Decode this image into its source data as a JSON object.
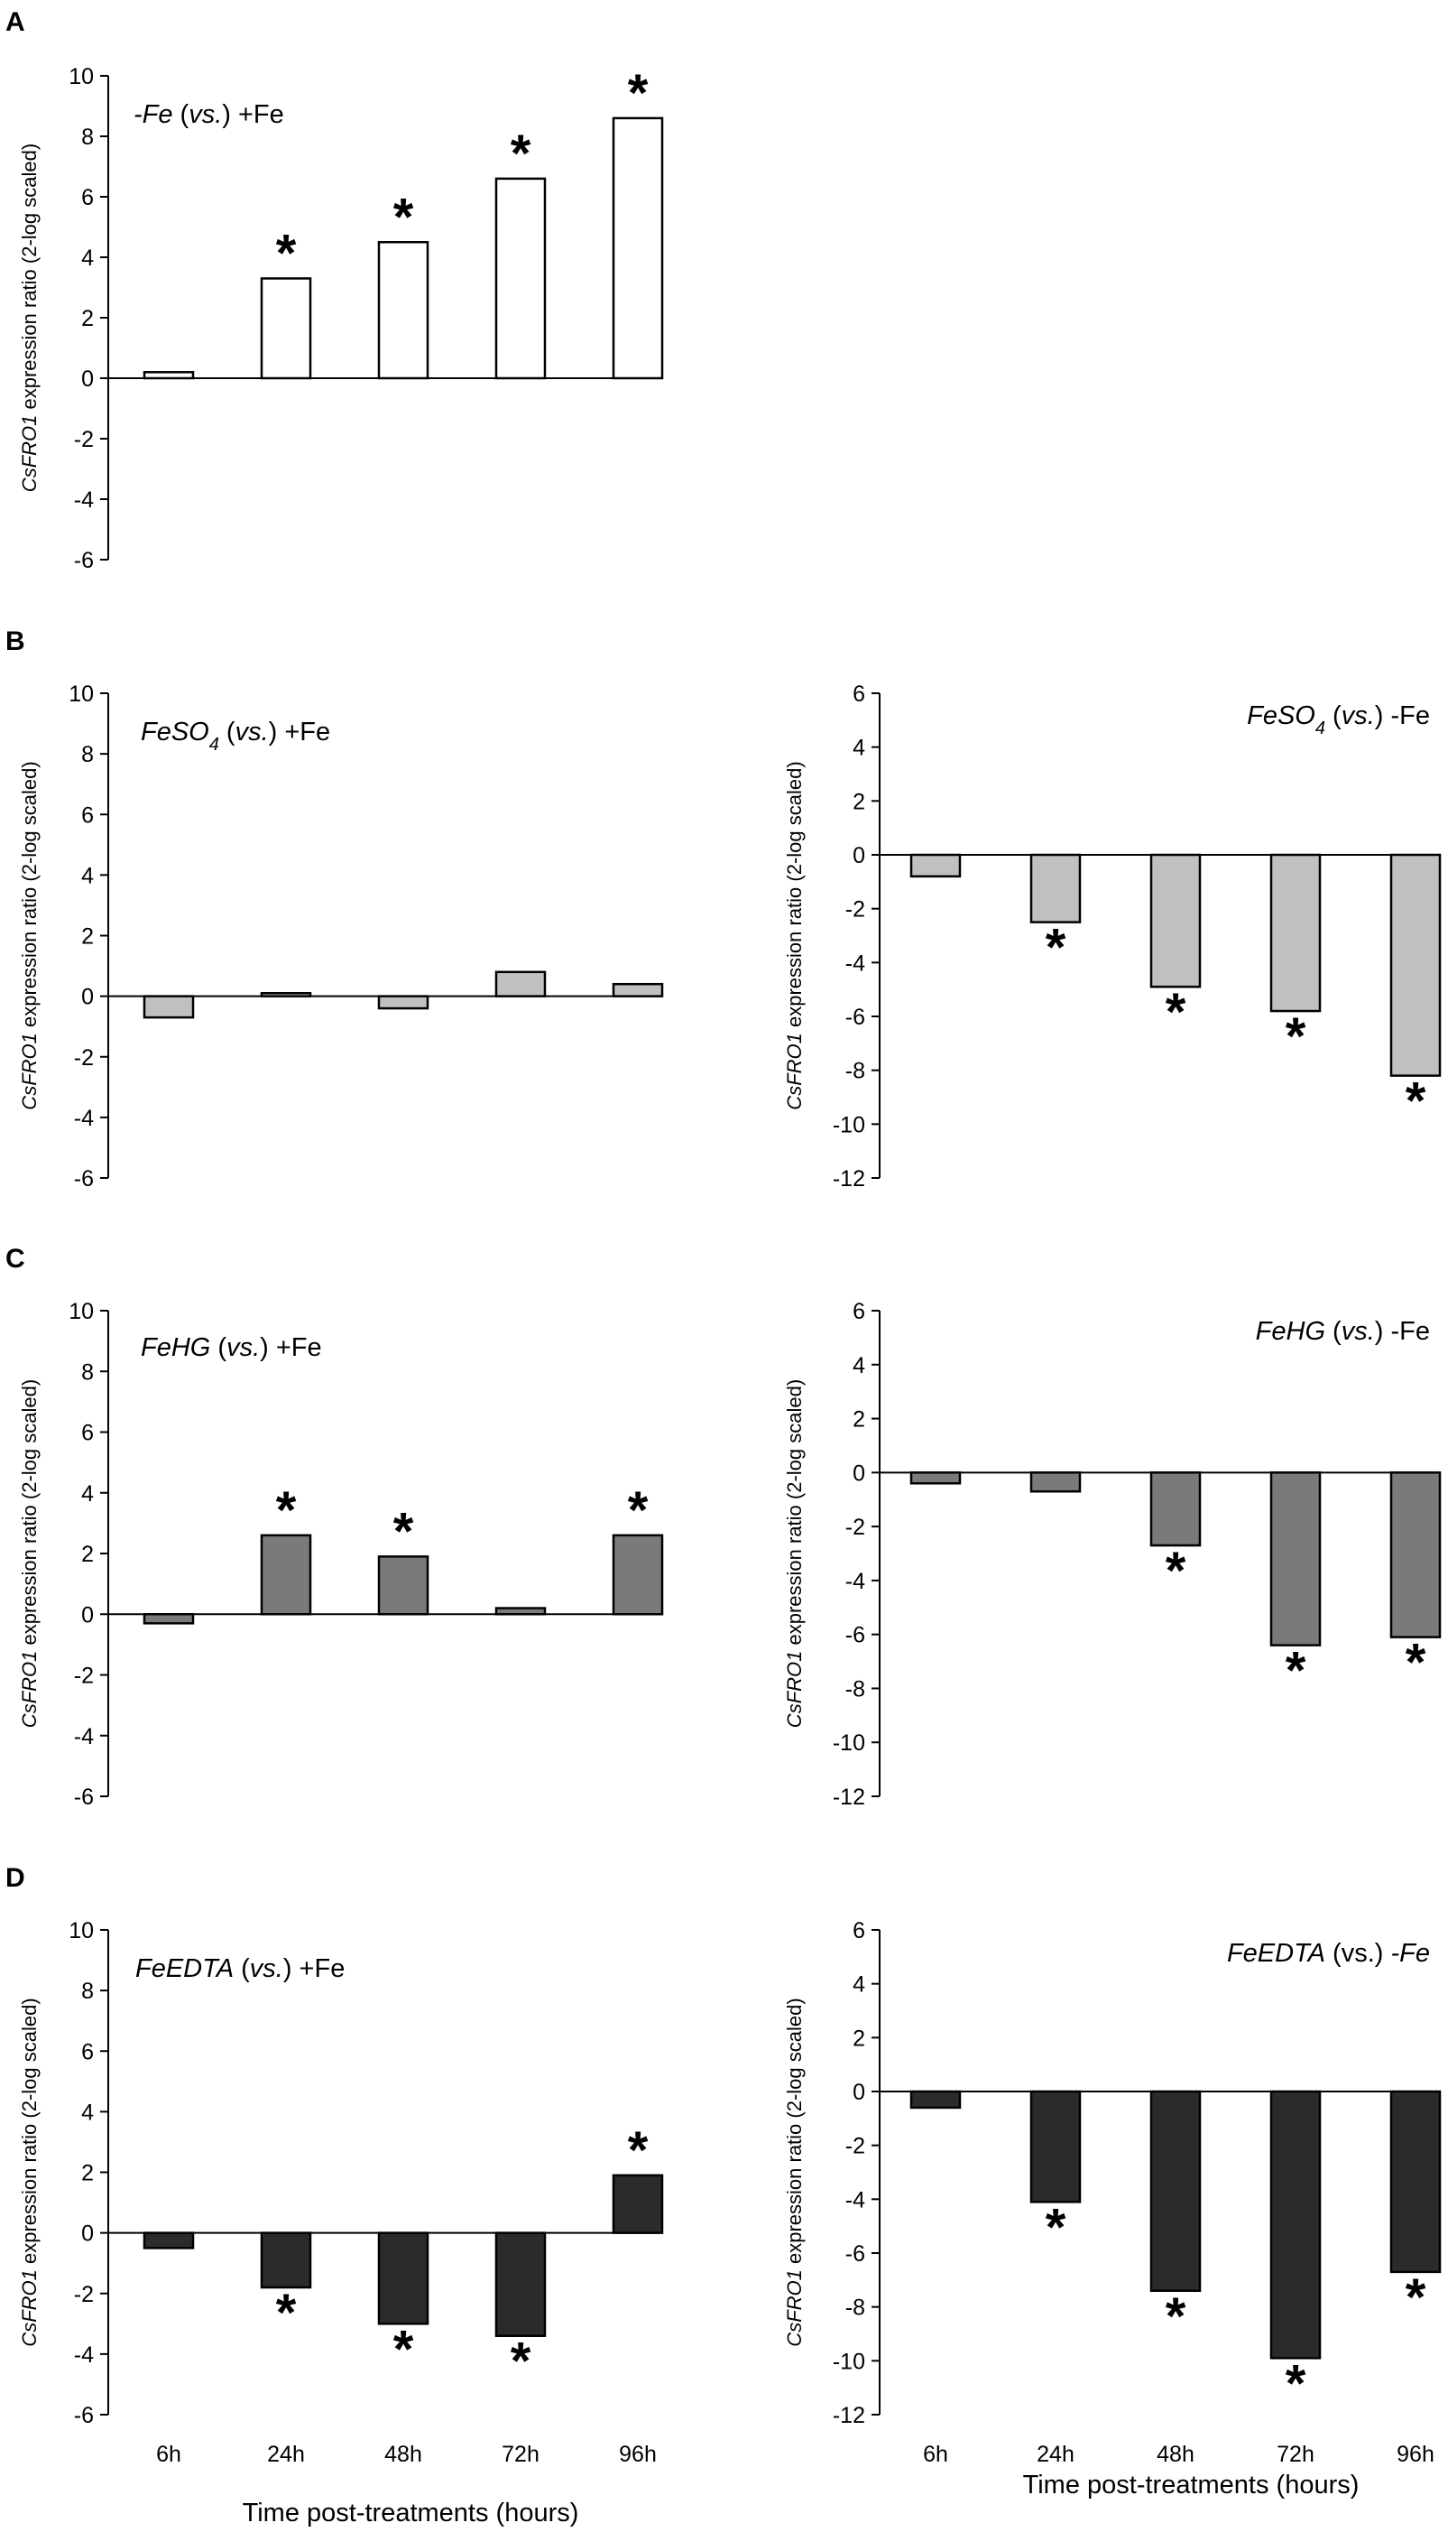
{
  "panel_letters": [
    "A",
    "B",
    "C",
    "D"
  ],
  "x_axis_label": "Time post-treatments (hours)",
  "colors": {
    "white_bar": "#ffffff",
    "light_gray_bar": "#c0c0c0",
    "mid_gray_bar": "#7a7a7a",
    "dark_bar": "#2b2b2b",
    "axis": "#000000"
  },
  "chart_data": [
    {
      "id": "A",
      "type": "bar",
      "title": "-Fe (vs.) +Fe",
      "title_parts": [
        {
          "text": "-Fe",
          "italic": true
        },
        {
          "text": " (",
          "italic": false
        },
        {
          "text": "vs.",
          "italic": true
        },
        {
          "text": ") +Fe",
          "italic": false
        }
      ],
      "ylabel": "CsFRO1 expression ratio (2-log scaled)",
      "ylabel_parts": [
        {
          "text": "CsFRO1",
          "italic": true
        },
        {
          "text": " expression ratio (2-log scaled)",
          "italic": false
        }
      ],
      "xlabel": "",
      "categories": [
        "6h",
        "24h",
        "48h",
        "72h",
        "96h"
      ],
      "values": [
        0.2,
        3.3,
        4.5,
        6.6,
        8.6
      ],
      "significant": [
        false,
        true,
        true,
        true,
        true
      ],
      "ylim": [
        -6,
        10
      ],
      "yticks": [
        -6,
        -4,
        -2,
        0,
        2,
        4,
        6,
        8,
        10
      ],
      "bar_color": "white_bar"
    },
    {
      "id": "B-left",
      "type": "bar",
      "title": "FeSO4 (vs.) +Fe",
      "title_parts": [
        {
          "text": "FeSO",
          "italic": true
        },
        {
          "text": "4",
          "italic": true,
          "sub": true
        },
        {
          "text": " (",
          "italic": false
        },
        {
          "text": "vs.",
          "italic": true
        },
        {
          "text": ") +Fe",
          "italic": false
        }
      ],
      "ylabel": "CsFRO1 expression ratio (2-log scaled)",
      "ylabel_parts": [
        {
          "text": "CsFRO1",
          "italic": true
        },
        {
          "text": " expression ratio (2-log scaled)",
          "italic": false
        }
      ],
      "xlabel": "",
      "categories": [
        "6h",
        "24h",
        "48h",
        "72h",
        "96h"
      ],
      "values": [
        -0.7,
        0.1,
        -0.4,
        0.8,
        0.4
      ],
      "significant": [
        false,
        false,
        false,
        false,
        false
      ],
      "ylim": [
        -6,
        10
      ],
      "yticks": [
        -6,
        -4,
        -2,
        0,
        2,
        4,
        6,
        8,
        10
      ],
      "bar_color": "light_gray_bar"
    },
    {
      "id": "B-right",
      "type": "bar",
      "title": "FeSO4 (vs.) -Fe",
      "title_parts": [
        {
          "text": "FeSO",
          "italic": true
        },
        {
          "text": "4",
          "italic": true,
          "sub": true
        },
        {
          "text": " (",
          "italic": false
        },
        {
          "text": "vs.",
          "italic": true
        },
        {
          "text": ") -Fe",
          "italic": false
        }
      ],
      "ylabel": "CsFRO1 expression ratio (2-log scaled)",
      "ylabel_parts": [
        {
          "text": "CsFRO1",
          "italic": true
        },
        {
          "text": " expression ratio (2-log scaled)",
          "italic": false
        }
      ],
      "xlabel": "",
      "categories": [
        "6h",
        "24h",
        "48h",
        "72h",
        "96h"
      ],
      "values": [
        -0.8,
        -2.5,
        -4.9,
        -5.8,
        -8.2
      ],
      "significant": [
        false,
        true,
        true,
        true,
        true
      ],
      "ylim": [
        -12,
        6
      ],
      "yticks": [
        -12,
        -10,
        -8,
        -6,
        -4,
        -2,
        0,
        2,
        4,
        6
      ],
      "bar_color": "light_gray_bar"
    },
    {
      "id": "C-left",
      "type": "bar",
      "title": "FeHG (vs.) +Fe",
      "title_parts": [
        {
          "text": "FeHG",
          "italic": true
        },
        {
          "text": " (",
          "italic": false
        },
        {
          "text": "vs.",
          "italic": true
        },
        {
          "text": ") +Fe",
          "italic": false
        }
      ],
      "ylabel": "CsFRO1 expression ratio (2-log scaled)",
      "ylabel_parts": [
        {
          "text": "CsFRO1",
          "italic": true
        },
        {
          "text": " expression ratio (2-log scaled)",
          "italic": false
        }
      ],
      "xlabel": "",
      "categories": [
        "6h",
        "24h",
        "48h",
        "72h",
        "96h"
      ],
      "values": [
        -0.3,
        2.6,
        1.9,
        0.2,
        2.6
      ],
      "significant": [
        false,
        true,
        true,
        false,
        true
      ],
      "ylim": [
        -6,
        10
      ],
      "yticks": [
        -6,
        -4,
        -2,
        0,
        2,
        4,
        6,
        8,
        10
      ],
      "bar_color": "mid_gray_bar"
    },
    {
      "id": "C-right",
      "type": "bar",
      "title": "FeHG (vs.) -Fe",
      "title_parts": [
        {
          "text": "FeHG",
          "italic": true
        },
        {
          "text": " (",
          "italic": false
        },
        {
          "text": "vs.",
          "italic": true
        },
        {
          "text": ") -Fe",
          "italic": false
        }
      ],
      "ylabel": "CsFRO1 expression ratio (2-log scaled)",
      "ylabel_parts": [
        {
          "text": "CsFRO1",
          "italic": true
        },
        {
          "text": " expression ratio (2-log scaled)",
          "italic": false
        }
      ],
      "xlabel": "",
      "categories": [
        "6h",
        "24h",
        "48h",
        "72h",
        "96h"
      ],
      "values": [
        -0.4,
        -0.7,
        -2.7,
        -6.4,
        -6.1
      ],
      "significant": [
        false,
        false,
        true,
        true,
        true
      ],
      "ylim": [
        -12,
        6
      ],
      "yticks": [
        -12,
        -10,
        -8,
        -6,
        -4,
        -2,
        0,
        2,
        4,
        6
      ],
      "bar_color": "mid_gray_bar"
    },
    {
      "id": "D-left",
      "type": "bar",
      "title": "FeEDTA (vs.) +Fe",
      "title_parts": [
        {
          "text": "FeEDTA",
          "italic": true
        },
        {
          "text": " (",
          "italic": false
        },
        {
          "text": "vs.",
          "italic": true
        },
        {
          "text": ") +Fe",
          "italic": false
        }
      ],
      "ylabel": "CsFRO1 expression ratio (2-log scaled)",
      "ylabel_parts": [
        {
          "text": "CsFRO1",
          "italic": true
        },
        {
          "text": " expression ratio (2-log scaled)",
          "italic": false
        }
      ],
      "xlabel": "Time post-treatments (hours)",
      "categories": [
        "6h",
        "24h",
        "48h",
        "72h",
        "96h"
      ],
      "values": [
        -0.5,
        -1.8,
        -3.0,
        -3.4,
        1.9
      ],
      "significant": [
        false,
        true,
        true,
        true,
        true
      ],
      "ylim": [
        -6,
        10
      ],
      "yticks": [
        -6,
        -4,
        -2,
        0,
        2,
        4,
        6,
        8,
        10
      ],
      "bar_color": "dark_bar"
    },
    {
      "id": "D-right",
      "type": "bar",
      "title": "FeEDTA (vs.) -Fe",
      "title_parts": [
        {
          "text": "FeEDTA",
          "italic": true
        },
        {
          "text": " (vs.) ",
          "italic": false
        },
        {
          "text": "-Fe",
          "italic": true
        }
      ],
      "ylabel": "CsFRO1 expression ratio (2-log scaled)",
      "ylabel_parts": [
        {
          "text": "CsFRO1",
          "italic": true
        },
        {
          "text": " expression ratio (2-log scaled)",
          "italic": false
        }
      ],
      "xlabel": "Time post-treatments (hours)",
      "categories": [
        "6h",
        "24h",
        "48h",
        "72h",
        "96h"
      ],
      "values": [
        -0.6,
        -4.1,
        -7.4,
        -9.9,
        -6.7
      ],
      "significant": [
        false,
        true,
        true,
        true,
        true
      ],
      "ylim": [
        -12,
        6
      ],
      "yticks": [
        -12,
        -10,
        -8,
        -6,
        -4,
        -2,
        0,
        2,
        4,
        6
      ],
      "bar_color": "dark_bar"
    }
  ]
}
